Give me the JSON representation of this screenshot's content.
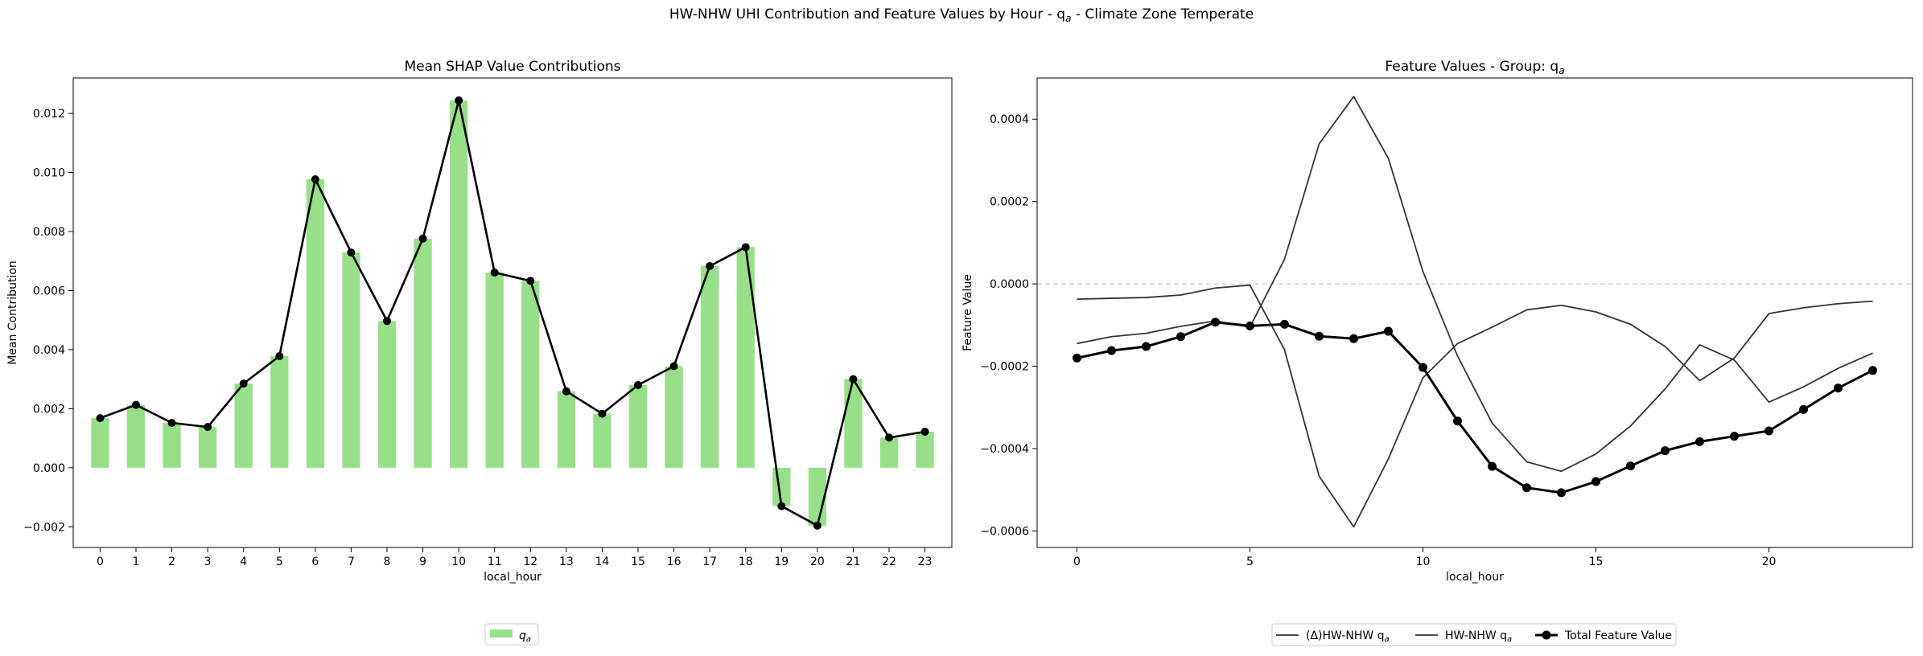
{
  "suptitle": "HW-NHW UHI Contribution and Feature Values by Hour - q",
  "suptitle_sub": "a",
  "suptitle_tail": " - Climate Zone Temperate",
  "chart_data": [
    {
      "type": "bar",
      "title": "Mean SHAP Value Contributions",
      "xlabel": "local_hour",
      "ylabel": "Mean Contribution",
      "categories": [
        "0",
        "1",
        "2",
        "3",
        "4",
        "5",
        "6",
        "7",
        "8",
        "9",
        "10",
        "11",
        "12",
        "13",
        "14",
        "15",
        "16",
        "17",
        "18",
        "19",
        "20",
        "21",
        "22",
        "23"
      ],
      "values": [
        0.00168,
        0.00213,
        0.00152,
        0.00138,
        0.00285,
        0.00378,
        0.00977,
        0.00729,
        0.00497,
        0.00776,
        0.01244,
        0.00661,
        0.00633,
        0.00259,
        0.00183,
        0.0028,
        0.00344,
        0.00683,
        0.00747,
        -0.0013,
        -0.00196,
        0.003,
        0.00102,
        0.00122
      ],
      "ylim": [
        -0.0027,
        0.0132
      ],
      "yticks": [
        "−0.002",
        "0.000",
        "0.002",
        "0.004",
        "0.006",
        "0.008",
        "0.010",
        "0.012"
      ],
      "ytick_values": [
        -0.002,
        0,
        0.002,
        0.004,
        0.006,
        0.008,
        0.01,
        0.012
      ],
      "bar_color": "#98df8a",
      "line_color": "#000000",
      "legend": {
        "label_main": "q",
        "label_sub": "a",
        "placement": "bottom-center"
      }
    },
    {
      "type": "line",
      "title": "Feature Values - Group: q",
      "title_sub": "a",
      "xlabel": "local_hour",
      "ylabel": "Feature Value",
      "x": [
        0,
        1,
        2,
        3,
        4,
        5,
        6,
        7,
        8,
        9,
        10,
        11,
        12,
        13,
        14,
        15,
        16,
        17,
        18,
        19,
        20,
        21,
        22,
        23
      ],
      "xlim": [
        -1.15,
        24.15
      ],
      "ylim": [
        -0.00064,
        0.0005
      ],
      "xticks": [
        "0",
        "5",
        "10",
        "15",
        "20"
      ],
      "xtick_values": [
        0,
        5,
        10,
        15,
        20
      ],
      "yticks": [
        "−0.0006",
        "−0.0004",
        "−0.0002",
        "0.0000",
        "0.0002",
        "0.0004"
      ],
      "ytick_values": [
        -0.0006,
        -0.0004,
        -0.0002,
        0,
        0.0002,
        0.0004
      ],
      "zero_line": true,
      "series": [
        {
          "name": "(Δ)HW-NHW q",
          "name_sub": "a",
          "color": "#333333",
          "marker": false,
          "values": [
            -0.000145,
            -0.000128,
            -0.00012,
            -0.000103,
            -9e-05,
            -0.000105,
            6e-05,
            0.00034,
            0.000455,
            0.000305,
            3e-05,
            -0.000175,
            -0.000338,
            -0.000432,
            -0.000455,
            -0.000413,
            -0.000345,
            -0.000255,
            -0.000148,
            -0.000185,
            -0.000287,
            -0.00025,
            -0.000205,
            -0.000168
          ]
        },
        {
          "name": "HW-NHW q",
          "name_sub": "a",
          "color": "#333333",
          "marker": false,
          "values": [
            -3.7e-05,
            -3.5e-05,
            -3.3e-05,
            -2.7e-05,
            -1e-05,
            -3e-06,
            -0.00016,
            -0.000467,
            -0.00059,
            -0.000425,
            -0.000228,
            -0.000145,
            -0.000105,
            -6.3e-05,
            -5.2e-05,
            -6.8e-05,
            -9.8e-05,
            -0.000152,
            -0.000235,
            -0.00018,
            -7.2e-05,
            -5.8e-05,
            -4.8e-05,
            -4.2e-05
          ]
        },
        {
          "name": "Total Feature Value",
          "color": "#000000",
          "marker": true,
          "values": [
            -0.00018,
            -0.000162,
            -0.000152,
            -0.000128,
            -9.3e-05,
            -0.000102,
            -9.8e-05,
            -0.000127,
            -0.000133,
            -0.000115,
            -0.000203,
            -0.000333,
            -0.000443,
            -0.000495,
            -0.000507,
            -0.00048,
            -0.000442,
            -0.000405,
            -0.000383,
            -0.00037,
            -0.000357,
            -0.000305,
            -0.000253,
            -0.00021
          ]
        }
      ],
      "legend": {
        "placement": "bottom-center"
      }
    }
  ]
}
